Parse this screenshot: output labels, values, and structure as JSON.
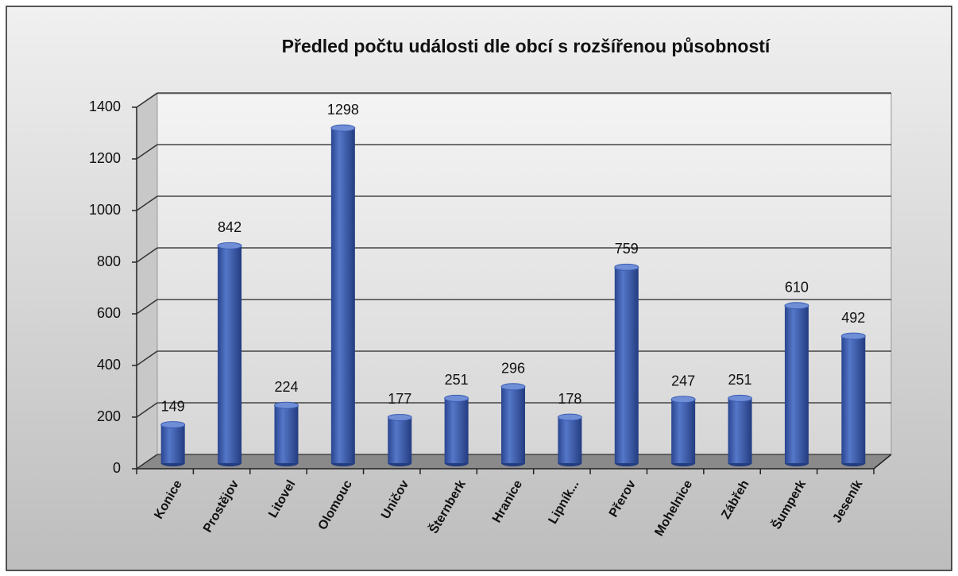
{
  "chart_data": {
    "type": "bar",
    "title": "Předled počtu události dle obcí s rozšířenou působností",
    "categories": [
      "Konice",
      "Prostějov",
      "Litovel",
      "Olomouc",
      "Uničov",
      "Šternberk",
      "Hranice",
      "Lipník...",
      "Přerov",
      "Mohelnice",
      "Zábřeh",
      "Šumperk",
      "Jeseník"
    ],
    "values": [
      149,
      842,
      224,
      1298,
      177,
      251,
      296,
      178,
      759,
      247,
      251,
      610,
      492
    ],
    "color": "#3a5cb2",
    "ylim": [
      0,
      1400
    ],
    "yticks": [
      0,
      200,
      400,
      600,
      800,
      1000,
      1200,
      1400
    ],
    "grid": true
  }
}
